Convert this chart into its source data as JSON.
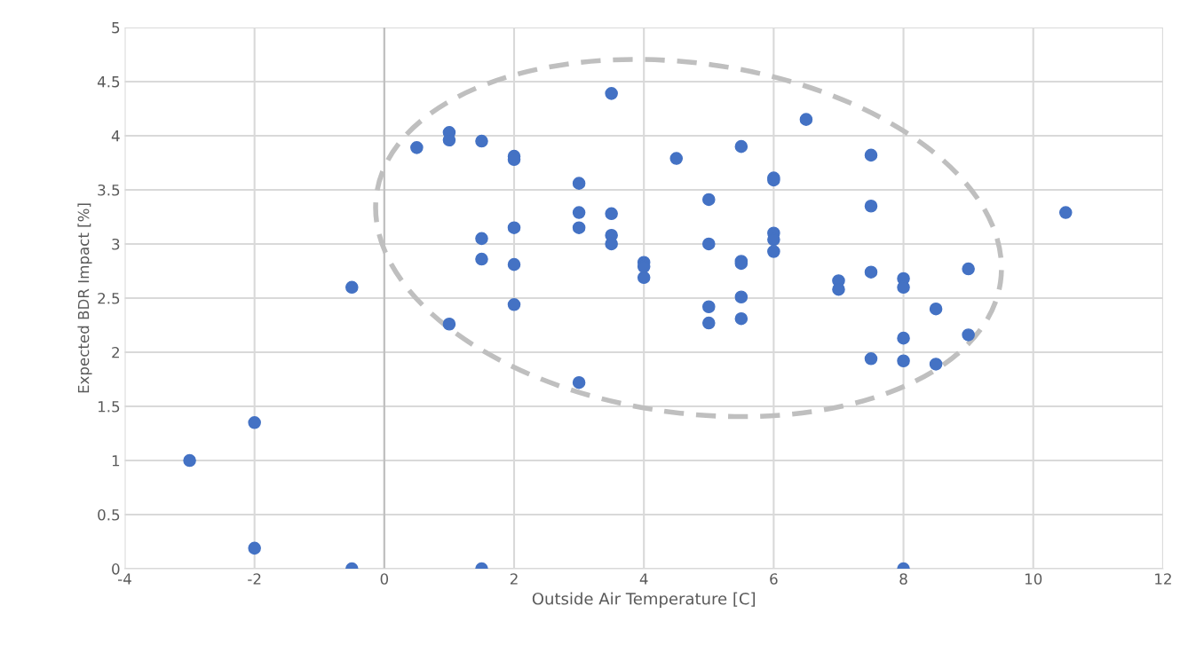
{
  "chart_data": {
    "type": "scatter",
    "xlabel": "Outside Air Temperature [C]",
    "ylabel": "Expected BDR Impact [%]",
    "x": [
      -3,
      -2,
      -2,
      -0.5,
      -0.5,
      0.5,
      1,
      1,
      1,
      1.5,
      1.5,
      1.5,
      1.5,
      2,
      2,
      2,
      2,
      2,
      3,
      3,
      3,
      3,
      3.5,
      3.5,
      3.5,
      3.5,
      4,
      4,
      4,
      4.5,
      5,
      5,
      5,
      5,
      5.5,
      5.5,
      5.5,
      5.5,
      5.5,
      6,
      6,
      6,
      6,
      6,
      6.5,
      7,
      7,
      7.5,
      7.5,
      7.5,
      7.5,
      8,
      8,
      8,
      8,
      8,
      8.5,
      8.5,
      9,
      9,
      10.5
    ],
    "series": [
      {
        "color": "#4472c4",
        "values": [
          1.0,
          1.35,
          0.19,
          2.6,
          0,
          3.89,
          4.03,
          3.96,
          2.26,
          3.95,
          3.05,
          2.86,
          0,
          3.81,
          3.78,
          3.15,
          2.81,
          2.44,
          3.56,
          3.29,
          3.15,
          1.72,
          4.39,
          3.28,
          3.08,
          3.0,
          2.83,
          2.79,
          2.69,
          3.79,
          3.41,
          3.0,
          2.42,
          2.27,
          3.9,
          2.84,
          2.82,
          2.51,
          2.31,
          3.61,
          3.59,
          3.1,
          3.04,
          2.93,
          4.15,
          2.66,
          2.58,
          3.82,
          3.35,
          2.74,
          1.94,
          2.68,
          2.6,
          2.13,
          1.92,
          0,
          2.4,
          1.89,
          2.77,
          2.16,
          3.29
        ]
      }
    ],
    "xlim": [
      -4,
      12
    ],
    "xticks": [
      -4,
      -2,
      0,
      2,
      4,
      6,
      8,
      10,
      12
    ],
    "ylim": [
      0,
      5
    ],
    "yticks": [
      0,
      0.5,
      1,
      1.5,
      2,
      2.5,
      3,
      3.5,
      4,
      4.5,
      5
    ],
    "grid": true,
    "marker": "circle",
    "legend": false
  }
}
